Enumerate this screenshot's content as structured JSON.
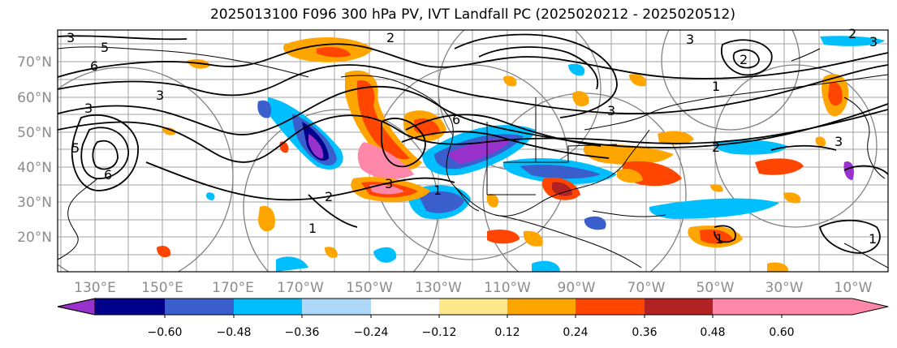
{
  "title": "2025013100 F096 300 hPa PV, IVT Landfall PC (2025020212 - 2025020512)",
  "map": {
    "lat_labels": [
      "70°N",
      "60°N",
      "50°N",
      "40°N",
      "30°N",
      "20°N"
    ],
    "lon_labels": [
      "130°E",
      "150°E",
      "170°E",
      "170°W",
      "150°W",
      "130°W",
      "110°W",
      "90°W",
      "70°W",
      "50°W",
      "30°W",
      "10°W"
    ],
    "contour_labels": [
      "3",
      "5",
      "6",
      "3",
      "3",
      "5",
      "6",
      "2",
      "3",
      "1",
      "1",
      "2",
      "6",
      "3",
      "2",
      "3",
      "1",
      "2",
      "1",
      "3",
      "3",
      "2",
      "1"
    ]
  },
  "colorbar": {
    "ticks": [
      "−0.60",
      "−0.48",
      "−0.36",
      "−0.24",
      "−0.12",
      "0.12",
      "0.24",
      "0.36",
      "0.48",
      "0.60"
    ],
    "colors": [
      "#9932cc",
      "#00008b",
      "#3a5fcd",
      "#00bfff",
      "#add8f7",
      "#ffffff",
      "#ffe88c",
      "#ffa500",
      "#ff4500",
      "#b22222",
      "#ff88aa"
    ]
  }
}
